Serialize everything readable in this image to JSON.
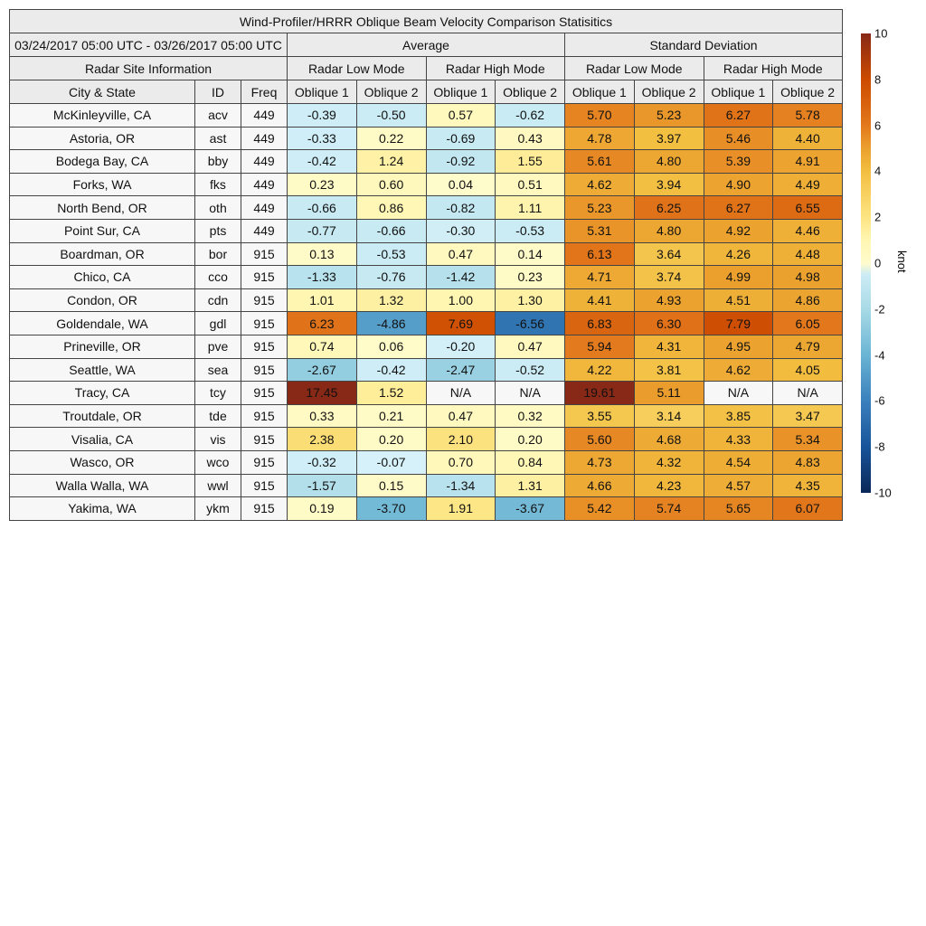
{
  "title": "Wind-Profiler/HRRR Oblique Beam Velocity Comparison Statisitics",
  "date_range": "03/24/2017 05:00 UTC - 03/26/2017 05:00 UTC",
  "groups": {
    "average": "Average",
    "std": "Standard Deviation"
  },
  "site_info": "Radar Site Information",
  "modes": [
    "Radar Low Mode",
    "Radar High Mode",
    "Radar Low Mode",
    "Radar High Mode"
  ],
  "columns": [
    "City & State",
    "ID",
    "Freq",
    "Oblique 1",
    "Oblique 2",
    "Oblique 1",
    "Oblique 2",
    "Oblique 1",
    "Oblique 2",
    "Oblique 1",
    "Oblique 2"
  ],
  "colorbar": {
    "unit": "knot",
    "range": [
      -10,
      10
    ],
    "ticks": [
      "10",
      "8",
      "6",
      "4",
      "2",
      "0",
      "-2",
      "-4",
      "-6",
      "-8",
      "-10"
    ],
    "colormap": "diverging blue (negative) to yellow-orange-brown (positive)",
    "na_color": "#f7f7f7"
  },
  "chart_data": {
    "type": "heatmap",
    "title": "Wind-Profiler/HRRR Oblique Beam Velocity Comparison Statisitics",
    "units": "knot",
    "rows": [
      {
        "city": "McKinleyville, CA",
        "id": "acv",
        "freq": "449",
        "values": [
          "-0.39",
          "-0.50",
          "0.57",
          "-0.62",
          "5.70",
          "5.23",
          "6.27",
          "5.78"
        ]
      },
      {
        "city": "Astoria, OR",
        "id": "ast",
        "freq": "449",
        "values": [
          "-0.33",
          "0.22",
          "-0.69",
          "0.43",
          "4.78",
          "3.97",
          "5.46",
          "4.40"
        ]
      },
      {
        "city": "Bodega Bay, CA",
        "id": "bby",
        "freq": "449",
        "values": [
          "-0.42",
          "1.24",
          "-0.92",
          "1.55",
          "5.61",
          "4.80",
          "5.39",
          "4.91"
        ]
      },
      {
        "city": "Forks, WA",
        "id": "fks",
        "freq": "449",
        "values": [
          "0.23",
          "0.60",
          "0.04",
          "0.51",
          "4.62",
          "3.94",
          "4.90",
          "4.49"
        ]
      },
      {
        "city": "North Bend, OR",
        "id": "oth",
        "freq": "449",
        "values": [
          "-0.66",
          "0.86",
          "-0.82",
          "1.11",
          "5.23",
          "6.25",
          "6.27",
          "6.55"
        ]
      },
      {
        "city": "Point Sur, CA",
        "id": "pts",
        "freq": "449",
        "values": [
          "-0.77",
          "-0.66",
          "-0.30",
          "-0.53",
          "5.31",
          "4.80",
          "4.92",
          "4.46"
        ]
      },
      {
        "city": "Boardman, OR",
        "id": "bor",
        "freq": "915",
        "values": [
          "0.13",
          "-0.53",
          "0.47",
          "0.14",
          "6.13",
          "3.64",
          "4.26",
          "4.48"
        ]
      },
      {
        "city": "Chico, CA",
        "id": "cco",
        "freq": "915",
        "values": [
          "-1.33",
          "-0.76",
          "-1.42",
          "0.23",
          "4.71",
          "3.74",
          "4.99",
          "4.98"
        ]
      },
      {
        "city": "Condon, OR",
        "id": "cdn",
        "freq": "915",
        "values": [
          "1.01",
          "1.32",
          "1.00",
          "1.30",
          "4.41",
          "4.93",
          "4.51",
          "4.86"
        ]
      },
      {
        "city": "Goldendale, WA",
        "id": "gdl",
        "freq": "915",
        "values": [
          "6.23",
          "-4.86",
          "7.69",
          "-6.56",
          "6.83",
          "6.30",
          "7.79",
          "6.05"
        ]
      },
      {
        "city": "Prineville, OR",
        "id": "pve",
        "freq": "915",
        "values": [
          "0.74",
          "0.06",
          "-0.20",
          "0.47",
          "5.94",
          "4.31",
          "4.95",
          "4.79"
        ]
      },
      {
        "city": "Seattle, WA",
        "id": "sea",
        "freq": "915",
        "values": [
          "-2.67",
          "-0.42",
          "-2.47",
          "-0.52",
          "4.22",
          "3.81",
          "4.62",
          "4.05"
        ]
      },
      {
        "city": "Tracy, CA",
        "id": "tcy",
        "freq": "915",
        "values": [
          "17.45",
          "1.52",
          "N/A",
          "N/A",
          "19.61",
          "5.11",
          "N/A",
          "N/A"
        ]
      },
      {
        "city": "Troutdale, OR",
        "id": "tde",
        "freq": "915",
        "values": [
          "0.33",
          "0.21",
          "0.47",
          "0.32",
          "3.55",
          "3.14",
          "3.85",
          "3.47"
        ]
      },
      {
        "city": "Visalia, CA",
        "id": "vis",
        "freq": "915",
        "values": [
          "2.38",
          "0.20",
          "2.10",
          "0.20",
          "5.60",
          "4.68",
          "4.33",
          "5.34"
        ]
      },
      {
        "city": "Wasco, OR",
        "id": "wco",
        "freq": "915",
        "values": [
          "-0.32",
          "-0.07",
          "0.70",
          "0.84",
          "4.73",
          "4.32",
          "4.54",
          "4.83"
        ]
      },
      {
        "city": "Walla Walla, WA",
        "id": "wwl",
        "freq": "915",
        "values": [
          "-1.57",
          "0.15",
          "-1.34",
          "1.31",
          "4.66",
          "4.23",
          "4.57",
          "4.35"
        ]
      },
      {
        "city": "Yakima, WA",
        "id": "ykm",
        "freq": "915",
        "values": [
          "0.19",
          "-3.70",
          "1.91",
          "-3.67",
          "5.42",
          "5.74",
          "5.65",
          "6.07"
        ]
      }
    ]
  }
}
